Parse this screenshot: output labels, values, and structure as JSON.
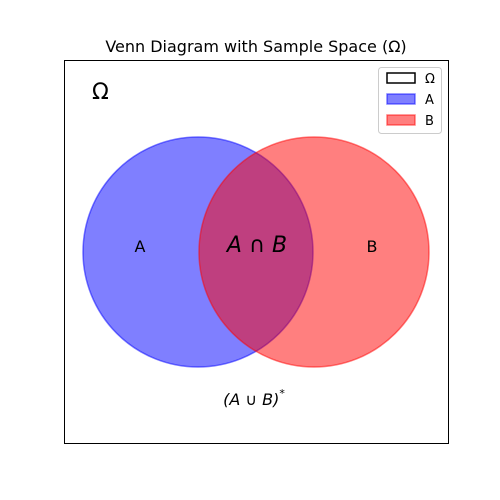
{
  "title": "Venn Diagram with Sample Space (Ω)",
  "sample_space": {
    "symbol": "Ω"
  },
  "sets": [
    {
      "name": "A",
      "label": "A",
      "color": "#0000ff",
      "opacity": 0.5
    },
    {
      "name": "B",
      "label": "B",
      "color": "#ff0000",
      "opacity": 0.5
    }
  ],
  "intersection_label": "A ∩ B",
  "complement_label": "(A ∪ B)",
  "complement_sup": "*",
  "legend": {
    "placement": "top-right",
    "entries": [
      {
        "label": "Ω",
        "swatch": "outline",
        "color": "#000000"
      },
      {
        "label": "A",
        "swatch": "fill",
        "color": "#0000ff"
      },
      {
        "label": "B",
        "swatch": "fill",
        "color": "#ff0000"
      }
    ]
  }
}
